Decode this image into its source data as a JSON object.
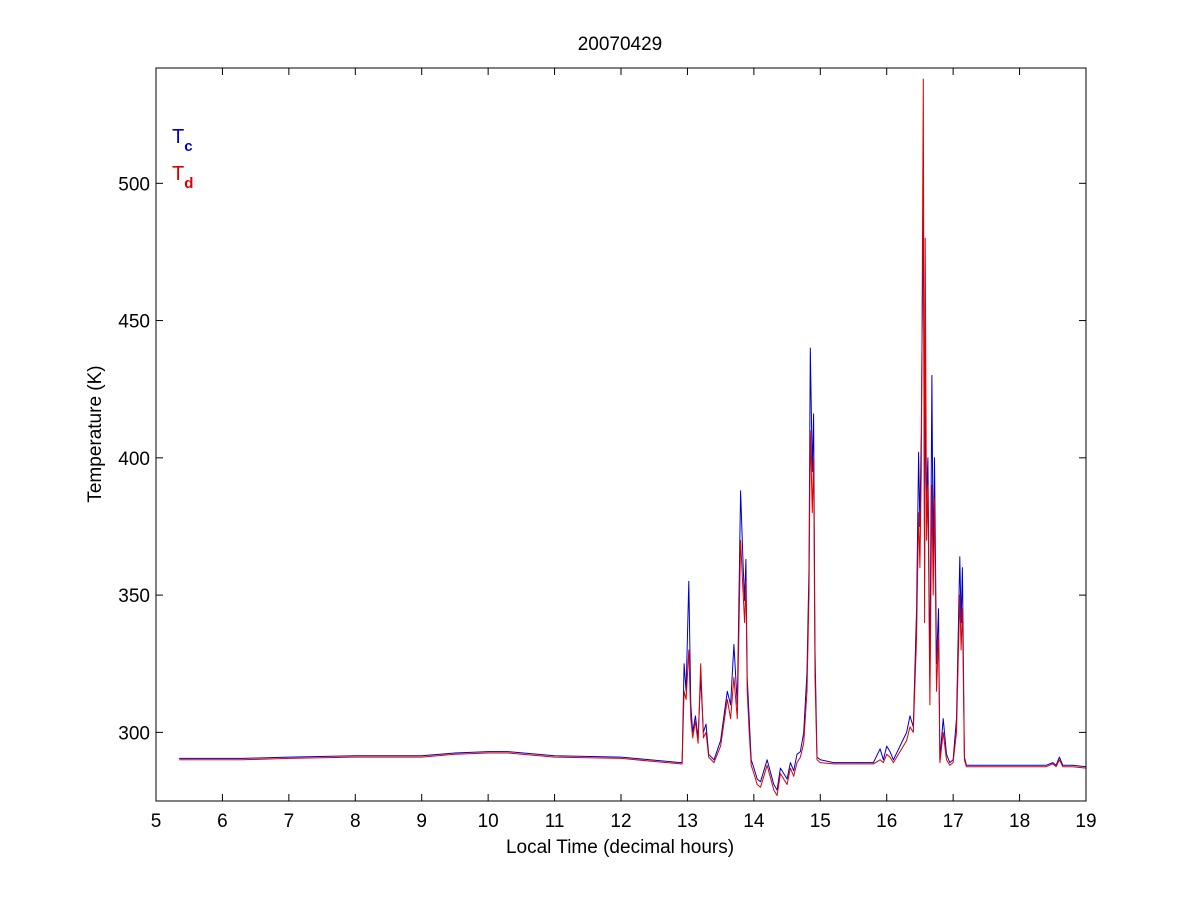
{
  "chart_data": {
    "type": "line",
    "title": "20070429",
    "xlabel": "Local Time (decimal hours)",
    "ylabel": "Temperature (K)",
    "xlim": [
      5,
      19
    ],
    "ylim": [
      275,
      542
    ],
    "x_ticks": [
      5,
      6,
      7,
      8,
      9,
      10,
      11,
      12,
      13,
      14,
      15,
      16,
      17,
      18,
      19
    ],
    "y_ticks": [
      300,
      350,
      400,
      450,
      500
    ],
    "grid": false,
    "legend": {
      "placement": "top-left",
      "entries": [
        {
          "main": "T",
          "sub": "c",
          "color": "#0000cc"
        },
        {
          "main": "T",
          "sub": "d",
          "color": "#dd0000"
        }
      ]
    },
    "series": [
      {
        "color": "#0000cc",
        "x": [
          5.35,
          6.3,
          7.0,
          8.0,
          9.0,
          9.5,
          10.0,
          10.3,
          11.0,
          12.0,
          12.9,
          12.92,
          12.95,
          12.98,
          13.02,
          13.05,
          13.08,
          13.12,
          13.16,
          13.2,
          13.24,
          13.28,
          13.32,
          13.4,
          13.5,
          13.6,
          13.65,
          13.7,
          13.75,
          13.8,
          13.84,
          13.86,
          13.88,
          13.9,
          13.93,
          13.96,
          14.0,
          14.05,
          14.1,
          14.15,
          14.2,
          14.3,
          14.35,
          14.4,
          14.45,
          14.5,
          14.55,
          14.6,
          14.65,
          14.7,
          14.75,
          14.8,
          14.83,
          14.85,
          14.88,
          14.9,
          14.92,
          14.95,
          15.0,
          15.2,
          15.5,
          15.8,
          15.9,
          15.95,
          16.0,
          16.05,
          16.1,
          16.2,
          16.3,
          16.35,
          16.4,
          16.45,
          16.48,
          16.5,
          16.52,
          16.55,
          16.57,
          16.58,
          16.6,
          16.62,
          16.65,
          16.68,
          16.7,
          16.72,
          16.75,
          16.78,
          16.8,
          16.85,
          16.9,
          16.95,
          17.0,
          17.05,
          17.1,
          17.12,
          17.14,
          17.17,
          17.2,
          17.3,
          17.5,
          18.0,
          18.4,
          18.5,
          18.55,
          18.6,
          18.65,
          18.8,
          19.0
        ],
        "y": [
          290.5,
          290.5,
          291,
          291.5,
          291.5,
          292.5,
          293,
          293,
          291.5,
          291,
          289,
          289,
          325,
          315,
          355,
          310,
          300,
          306,
          298,
          320,
          300,
          303,
          292,
          290,
          297,
          315,
          310,
          332,
          310,
          388,
          360,
          348,
          363,
          320,
          305,
          290,
          287,
          283,
          282,
          286,
          290,
          281,
          279,
          287,
          285,
          283,
          289,
          286,
          292,
          293,
          300,
          322,
          360,
          440,
          395,
          416,
          330,
          291,
          290,
          289,
          289,
          289,
          294,
          290,
          295,
          293,
          290,
          295,
          300,
          306,
          302,
          345,
          402,
          375,
          410,
          495,
          355,
          420,
          385,
          400,
          320,
          430,
          360,
          400,
          325,
          345,
          290,
          305,
          292,
          289,
          290,
          305,
          364,
          340,
          360,
          291,
          288,
          288,
          288,
          288,
          288,
          289,
          288,
          291,
          288,
          288,
          287.5
        ]
      },
      {
        "color": "#dd0000",
        "x": [
          5.35,
          6.3,
          7.0,
          8.0,
          9.0,
          9.5,
          10.0,
          10.3,
          11.0,
          12.0,
          12.9,
          12.92,
          12.95,
          12.98,
          13.02,
          13.05,
          13.08,
          13.12,
          13.16,
          13.2,
          13.24,
          13.28,
          13.32,
          13.4,
          13.5,
          13.6,
          13.65,
          13.7,
          13.75,
          13.8,
          13.84,
          13.86,
          13.88,
          13.9,
          13.93,
          13.96,
          14.0,
          14.05,
          14.1,
          14.15,
          14.2,
          14.3,
          14.35,
          14.4,
          14.45,
          14.5,
          14.55,
          14.6,
          14.65,
          14.7,
          14.75,
          14.8,
          14.83,
          14.85,
          14.88,
          14.9,
          14.92,
          14.95,
          15.0,
          15.2,
          15.5,
          15.8,
          15.9,
          15.95,
          16.0,
          16.05,
          16.1,
          16.2,
          16.3,
          16.35,
          16.4,
          16.45,
          16.48,
          16.5,
          16.52,
          16.55,
          16.57,
          16.58,
          16.6,
          16.62,
          16.65,
          16.68,
          16.7,
          16.72,
          16.75,
          16.78,
          16.8,
          16.85,
          16.9,
          16.95,
          17.0,
          17.05,
          17.1,
          17.12,
          17.14,
          17.17,
          17.2,
          17.3,
          17.5,
          18.0,
          18.4,
          18.5,
          18.55,
          18.6,
          18.65,
          18.8,
          19.0
        ],
        "y": [
          290,
          290,
          290.5,
          291,
          291,
          292,
          292.5,
          292.5,
          291,
          290.5,
          288.5,
          288.5,
          315,
          312,
          330,
          305,
          298,
          304,
          296,
          325,
          298,
          300,
          291,
          289,
          295,
          312,
          305,
          320,
          305,
          370,
          350,
          340,
          355,
          315,
          300,
          288,
          285,
          281,
          280,
          284,
          288,
          279,
          277,
          285,
          283,
          281,
          287,
          284,
          289,
          291,
          296,
          315,
          350,
          410,
          380,
          400,
          320,
          290,
          289,
          288.5,
          288.5,
          288.5,
          290,
          289,
          292,
          291,
          289,
          293,
          297,
          302,
          300,
          335,
          380,
          360,
          395,
          538,
          340,
          480,
          370,
          390,
          310,
          390,
          350,
          385,
          315,
          335,
          289,
          300,
          290,
          288,
          289,
          300,
          350,
          330,
          345,
          290,
          287.5,
          287.5,
          287.5,
          287.5,
          287.5,
          288.5,
          287.5,
          290,
          287.5,
          287.5,
          287
        ]
      }
    ]
  }
}
